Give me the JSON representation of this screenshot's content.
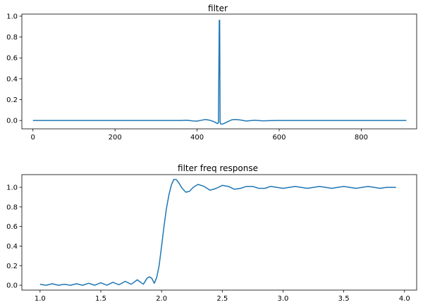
{
  "chart_data": [
    {
      "type": "line",
      "title": "filter",
      "xlabel": "",
      "ylabel": "",
      "xlim": [
        -27,
        935
      ],
      "ylim": [
        -0.08,
        1.02
      ],
      "xticks": [
        0,
        200,
        400,
        600,
        800
      ],
      "yticks": [
        0.0,
        0.2,
        0.4,
        0.6,
        0.8,
        1.0
      ],
      "xtick_labels": [
        "0",
        "200",
        "400",
        "600",
        "800"
      ],
      "ytick_labels": [
        "0.0",
        "0.2",
        "0.4",
        "0.6",
        "0.8",
        "1.0"
      ],
      "grid": false,
      "series": [
        {
          "color": "#1f77b4",
          "x": [
            0,
            40,
            80,
            120,
            160,
            200,
            240,
            280,
            310,
            340,
            360,
            375,
            390,
            400,
            410,
            420,
            430,
            440,
            445,
            450,
            452,
            454,
            455,
            456,
            458,
            460,
            465,
            470,
            478,
            485,
            495,
            505,
            520,
            540,
            560,
            590,
            620,
            660,
            700,
            750,
            800,
            860,
            910
          ],
          "y": [
            0.0,
            0.0,
            0.0,
            0.0,
            0.0,
            0.0,
            0.0,
            0.0,
            0.0,
            0.0,
            0.0,
            0.002,
            -0.004,
            -0.006,
            0.002,
            0.01,
            0.004,
            -0.01,
            -0.02,
            -0.03,
            -0.02,
            0.96,
            0.96,
            -0.02,
            -0.035,
            -0.035,
            -0.03,
            -0.02,
            -0.005,
            0.008,
            0.01,
            0.005,
            -0.005,
            0.003,
            -0.003,
            0.0,
            0.0,
            0.0,
            0.0,
            0.0,
            0.0,
            0.0,
            0.0
          ]
        }
      ]
    },
    {
      "type": "line",
      "title": "filter freq response",
      "xlabel": "",
      "ylabel": "",
      "xlim": [
        0.85,
        4.1
      ],
      "ylim": [
        -0.05,
        1.13
      ],
      "xticks": [
        1.0,
        1.5,
        2.0,
        2.5,
        3.0,
        3.5,
        4.0
      ],
      "yticks": [
        0.0,
        0.2,
        0.4,
        0.6,
        0.8,
        1.0
      ],
      "xtick_labels": [
        "1.0",
        "1.5",
        "2.0",
        "2.5",
        "3.0",
        "3.5",
        "4.0"
      ],
      "ytick_labels": [
        "0.0",
        "0.2",
        "0.4",
        "0.6",
        "0.8",
        "1.0"
      ],
      "grid": false,
      "series": [
        {
          "color": "#1f77b4",
          "x": [
            1.0,
            1.05,
            1.1,
            1.15,
            1.2,
            1.25,
            1.3,
            1.35,
            1.4,
            1.45,
            1.5,
            1.55,
            1.6,
            1.65,
            1.7,
            1.75,
            1.8,
            1.85,
            1.88,
            1.9,
            1.92,
            1.94,
            1.96,
            1.98,
            2.0,
            2.02,
            2.04,
            2.06,
            2.08,
            2.1,
            2.12,
            2.14,
            2.17,
            2.2,
            2.23,
            2.26,
            2.3,
            2.35,
            2.4,
            2.45,
            2.5,
            2.55,
            2.6,
            2.65,
            2.7,
            2.75,
            2.8,
            2.85,
            2.9,
            2.95,
            3.0,
            3.05,
            3.1,
            3.15,
            3.2,
            3.25,
            3.3,
            3.35,
            3.4,
            3.45,
            3.5,
            3.55,
            3.6,
            3.65,
            3.7,
            3.75,
            3.8,
            3.85,
            3.9,
            3.93
          ],
          "y": [
            0.01,
            0.0,
            0.015,
            0.0,
            0.01,
            0.0,
            0.015,
            0.0,
            0.02,
            0.0,
            0.025,
            0.0,
            0.03,
            0.005,
            0.04,
            0.01,
            0.055,
            0.01,
            0.07,
            0.085,
            0.07,
            0.02,
            0.08,
            0.2,
            0.4,
            0.6,
            0.78,
            0.92,
            1.02,
            1.08,
            1.08,
            1.05,
            0.99,
            0.95,
            0.96,
            1.0,
            1.03,
            1.01,
            0.97,
            0.99,
            1.02,
            1.01,
            0.98,
            0.99,
            1.01,
            1.01,
            0.99,
            0.99,
            1.01,
            1.0,
            0.99,
            1.0,
            1.01,
            1.0,
            0.99,
            1.0,
            1.01,
            1.0,
            0.99,
            1.0,
            1.01,
            1.0,
            0.99,
            1.0,
            1.01,
            1.0,
            0.99,
            1.0,
            1.0,
            1.0
          ]
        }
      ]
    }
  ]
}
